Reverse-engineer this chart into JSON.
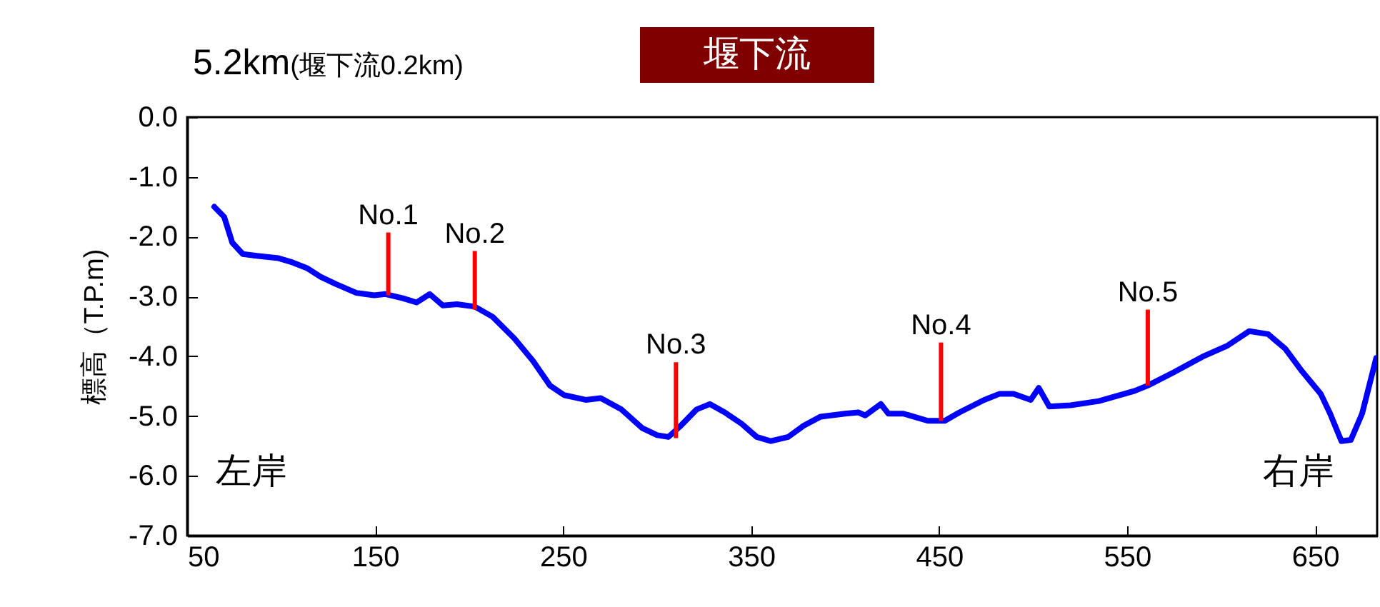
{
  "chart_data": {
    "type": "line",
    "title": "5.2km",
    "subtitle": "(堰下流0.2km)",
    "ylabel": "標高（T.P.m)",
    "xlim": [
      50,
      683
    ],
    "xticks": [
      50,
      150,
      250,
      350,
      450,
      550,
      650
    ],
    "ylim": [
      -7,
      0
    ],
    "yticks": [
      {
        "value": 0,
        "label": "0.0"
      },
      {
        "value": -1,
        "label": "-1.0"
      },
      {
        "value": -2,
        "label": "-2.0"
      },
      {
        "value": -3,
        "label": "-3.0"
      },
      {
        "value": -4,
        "label": "-4.0"
      },
      {
        "value": -5,
        "label": "-5.0"
      },
      {
        "value": -6,
        "label": "-6.0"
      },
      {
        "value": -7,
        "label": "-7.0"
      }
    ],
    "grid": false,
    "line_style": "solid",
    "marker": "none",
    "annotations": [
      "堰下流",
      "左岸",
      "右岸",
      {
        "text": "No.1",
        "x": 157,
        "y": -1.93
      },
      {
        "text": "No.2",
        "x": 203,
        "y": -2.24
      },
      {
        "text": "No.3",
        "x": 310,
        "y": -4.1
      },
      {
        "text": "No.4",
        "x": 451,
        "y": -3.77
      },
      {
        "text": "No.5",
        "x": 561,
        "y": -3.22
      }
    ],
    "series": [
      {
        "color": "#0000ff",
        "x": [
          64.4,
          69.7,
          74,
          79.6,
          87,
          98.6,
          106,
          114,
          121,
          129,
          140,
          149.5,
          155.5,
          164.7,
          172,
          179,
          186,
          193.5,
          203,
          212.5,
          224,
          234,
          243,
          250.5,
          262,
          270,
          281,
          292,
          300,
          306,
          312,
          321,
          328,
          336,
          345,
          353,
          360.5,
          369.7,
          378,
          387,
          400,
          407,
          410.7,
          419,
          423,
          431,
          444,
          453,
          460.8,
          474,
          482,
          489.6,
          498.7,
          503,
          508.6,
          520,
          535,
          554,
          561,
          574.7,
          590,
          603.5,
          615,
          625,
          634,
          643,
          653,
          658,
          664,
          669,
          675,
          682.5
        ],
        "values": [
          -1.5,
          -1.67,
          -2.1,
          -2.29,
          -2.32,
          -2.36,
          -2.43,
          -2.53,
          -2.67,
          -2.79,
          -2.94,
          -2.98,
          -2.96,
          -3.03,
          -3.1,
          -2.96,
          -3.15,
          -3.13,
          -3.17,
          -3.34,
          -3.7,
          -4.08,
          -4.49,
          -4.65,
          -4.73,
          -4.7,
          -4.89,
          -5.2,
          -5.32,
          -5.35,
          -5.18,
          -4.89,
          -4.8,
          -4.94,
          -5.13,
          -5.35,
          -5.42,
          -5.35,
          -5.16,
          -5.01,
          -4.96,
          -4.94,
          -4.99,
          -4.8,
          -4.96,
          -4.96,
          -5.08,
          -5.08,
          -4.94,
          -4.73,
          -4.63,
          -4.63,
          -4.73,
          -4.53,
          -4.84,
          -4.82,
          -4.75,
          -4.58,
          -4.49,
          -4.27,
          -4.01,
          -3.82,
          -3.58,
          -3.63,
          -3.87,
          -4.25,
          -4.63,
          -4.96,
          -5.42,
          -5.4,
          -4.96,
          -4.03
        ]
      },
      {
        "type": "bar",
        "color": "#ff0000",
        "x": [
          157,
          203,
          310,
          451,
          561
        ],
        "base": [
          -2.98,
          -3.22,
          -5.37,
          -5.08,
          -4.49
        ],
        "values": [
          1.05,
          0.98,
          1.27,
          1.31,
          1.27
        ]
      }
    ]
  }
}
